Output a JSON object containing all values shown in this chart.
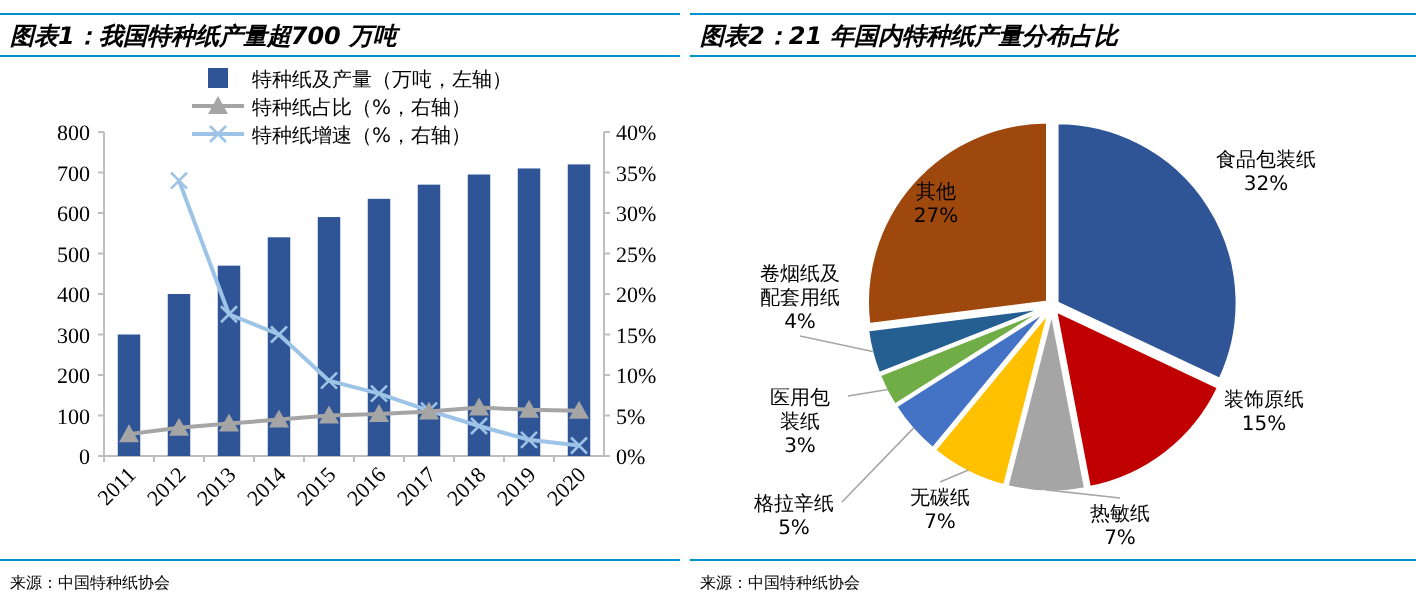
{
  "chart_data": [
    {
      "type": "bar",
      "title": "图表1：我国特种纸产量超700 万吨",
      "categories": [
        "2011",
        "2012",
        "2013",
        "2014",
        "2015",
        "2016",
        "2017",
        "2018",
        "2019",
        "2020"
      ],
      "series": [
        {
          "name": "特种纸及产量（万吨，左轴）",
          "type": "bar",
          "color": "#2f5597",
          "values": [
            300,
            400,
            470,
            540,
            590,
            635,
            670,
            695,
            710,
            720
          ]
        },
        {
          "name": "特种纸占比（%，右轴）",
          "type": "line",
          "axis": "y2",
          "color": "#a5a5a5",
          "marker": "triangle",
          "values": [
            2.7,
            3.5,
            4.0,
            4.5,
            5.0,
            5.2,
            5.5,
            6.0,
            5.7,
            5.6
          ]
        },
        {
          "name": "特种纸增速（%，右轴）",
          "type": "line",
          "axis": "y2",
          "color": "#9dc3e6",
          "marker": "cross",
          "values": [
            null,
            34,
            17.5,
            15,
            9.3,
            7.7,
            5.6,
            3.7,
            2.0,
            1.3
          ]
        }
      ],
      "ylim": [
        0,
        800
      ],
      "yticks": [
        0,
        100,
        200,
        300,
        400,
        500,
        600,
        700,
        800
      ],
      "y2lim": [
        0,
        40
      ],
      "y2ticks": [
        {
          "value": 0,
          "label": "0%"
        },
        {
          "value": 5,
          "label": "5%"
        },
        {
          "value": 10,
          "label": "10%"
        },
        {
          "value": 15,
          "label": "15%"
        },
        {
          "value": 20,
          "label": "20%"
        },
        {
          "value": 25,
          "label": "25%"
        },
        {
          "value": 30,
          "label": "30%"
        },
        {
          "value": 35,
          "label": "35%"
        },
        {
          "value": 40,
          "label": "40%"
        }
      ],
      "legend": "top",
      "grid": false,
      "annotations": [
        "来源：中国特种纸协会"
      ]
    },
    {
      "type": "pie",
      "title": "图表2：21 年国内特种纸产量分布占比",
      "categories": [
        "食品包装纸",
        "装饰原纸",
        "热敏纸",
        "无碳纸",
        "格拉辛纸",
        "医用包装纸",
        "卷烟纸及配套用纸",
        "其他"
      ],
      "values": [
        32,
        15,
        7,
        7,
        5,
        3,
        4,
        27
      ],
      "colors": [
        "#2f5597",
        "#c00000",
        "#a5a5a5",
        "#ffc000",
        "#4472c4",
        "#70ad47",
        "#255e91",
        "#9e480e"
      ],
      "value_labels": [
        "32%",
        "15%",
        "7%",
        "7%",
        "5%",
        "3%",
        "4%",
        "27%"
      ],
      "annotations": [
        "来源：中国特种纸协会"
      ]
    }
  ]
}
